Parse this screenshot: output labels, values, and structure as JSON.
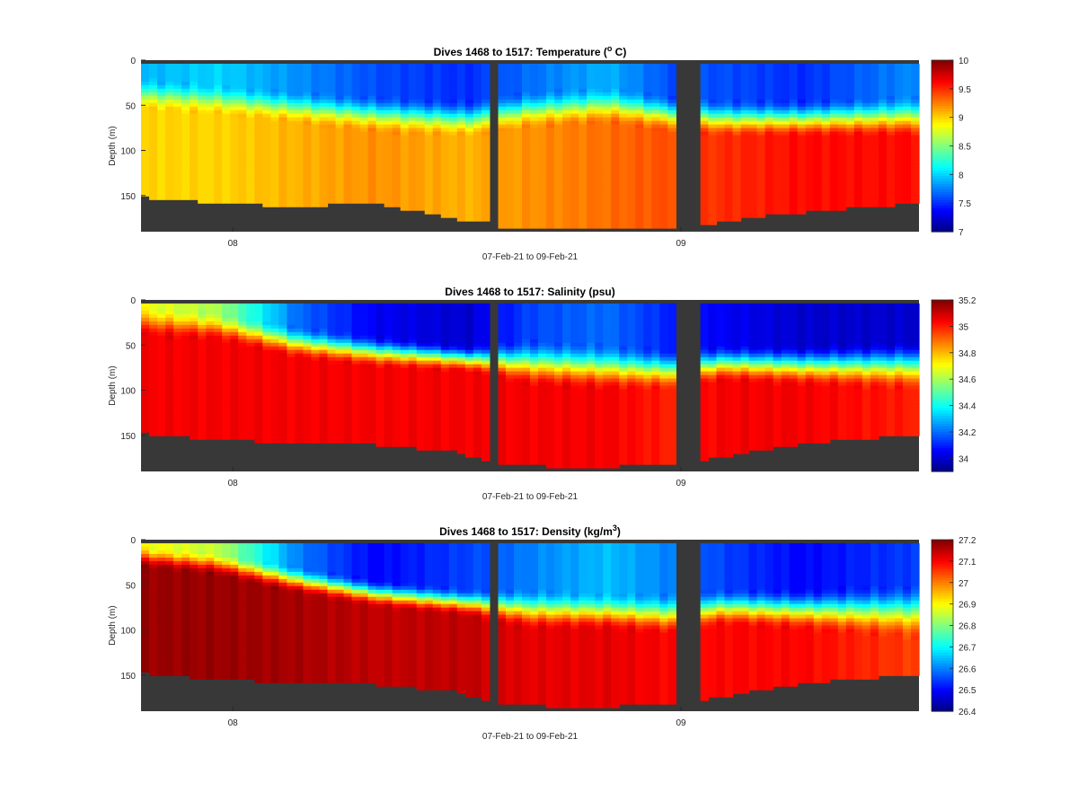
{
  "figure": {
    "background": "#ffffff",
    "no_data_color": "#383838",
    "colormap": "jet"
  },
  "chart_data": [
    {
      "type": "heatmap",
      "variable": "temperature",
      "title_text": "Dives 1468 to 1517: Temperature (",
      "title_sup": "o",
      "title_suffix": " C)",
      "xlabel": "07-Feb-21 to 09-Feb-21",
      "ylabel": "Depth (m)",
      "xlim": [
        0,
        1
      ],
      "x_ticks": [
        {
          "pos": 0.118,
          "label": "08"
        },
        {
          "pos": 0.694,
          "label": "09"
        }
      ],
      "ylim": [
        0,
        190
      ],
      "y_ticks": [
        0,
        50,
        100,
        150
      ],
      "y_tick_labels": [
        "0",
        "50",
        "100",
        "150"
      ],
      "colorbar": {
        "min": 7,
        "max": 10,
        "ticks": [
          "7",
          "7.5",
          "8",
          "8.5",
          "9",
          "9.5",
          "10"
        ]
      },
      "gaps": [
        [
          0.451,
          0.459
        ],
        [
          0.692,
          0.719
        ]
      ],
      "bottom_depth": [
        [
          0.0,
          152
        ],
        [
          0.1,
          158
        ],
        [
          0.2,
          162
        ],
        [
          0.3,
          158
        ],
        [
          0.4,
          175
        ],
        [
          0.45,
          180
        ],
        [
          0.46,
          188
        ],
        [
          0.69,
          188
        ],
        [
          0.72,
          182
        ],
        [
          0.8,
          172
        ],
        [
          0.9,
          165
        ],
        [
          1.0,
          158
        ]
      ],
      "profile": [
        {
          "x": 0.0,
          "surface": 7.9,
          "mld": 20,
          "thermo": 55,
          "deep": 9.0
        },
        {
          "x": 0.1,
          "surface": 8.0,
          "mld": 28,
          "thermo": 60,
          "deep": 9.0
        },
        {
          "x": 0.2,
          "surface": 7.8,
          "mld": 35,
          "thermo": 70,
          "deep": 9.1
        },
        {
          "x": 0.3,
          "surface": 7.6,
          "mld": 40,
          "thermo": 80,
          "deep": 9.2
        },
        {
          "x": 0.42,
          "surface": 7.5,
          "mld": 45,
          "thermo": 85,
          "deep": 9.1
        },
        {
          "x": 0.5,
          "surface": 7.7,
          "mld": 35,
          "thermo": 75,
          "deep": 9.2
        },
        {
          "x": 0.6,
          "surface": 7.9,
          "mld": 30,
          "thermo": 70,
          "deep": 9.3
        },
        {
          "x": 0.68,
          "surface": 7.6,
          "mld": 40,
          "thermo": 80,
          "deep": 9.4
        },
        {
          "x": 0.75,
          "surface": 7.6,
          "mld": 45,
          "thermo": 85,
          "deep": 9.5
        },
        {
          "x": 0.85,
          "surface": 7.5,
          "mld": 45,
          "thermo": 85,
          "deep": 9.6
        },
        {
          "x": 1.0,
          "surface": 7.8,
          "mld": 40,
          "thermo": 85,
          "deep": 9.6
        }
      ]
    },
    {
      "type": "heatmap",
      "variable": "salinity",
      "title_text": "Dives 1468 to 1517: Salinity (psu)",
      "title_sup": "",
      "title_suffix": "",
      "xlabel": "07-Feb-21 to 09-Feb-21",
      "ylabel": "Depth (m)",
      "xlim": [
        0,
        1
      ],
      "x_ticks": [
        {
          "pos": 0.118,
          "label": "08"
        },
        {
          "pos": 0.694,
          "label": "09"
        }
      ],
      "ylim": [
        0,
        190
      ],
      "y_ticks": [
        0,
        50,
        100,
        150
      ],
      "y_tick_labels": [
        "0",
        "50",
        "100",
        "150"
      ],
      "colorbar": {
        "min": 33.9,
        "max": 35.2,
        "ticks": [
          "34",
          "34.2",
          "34.4",
          "34.6",
          "34.8",
          "35",
          "35.2"
        ],
        "tick_values": [
          34,
          34.2,
          34.4,
          34.6,
          34.8,
          35,
          35.2
        ]
      },
      "gaps": [
        [
          0.451,
          0.459
        ],
        [
          0.692,
          0.719
        ]
      ],
      "bottom_depth": [
        [
          0.0,
          148
        ],
        [
          0.1,
          155
        ],
        [
          0.2,
          158
        ],
        [
          0.3,
          160
        ],
        [
          0.4,
          168
        ],
        [
          0.45,
          178
        ],
        [
          0.46,
          182
        ],
        [
          0.55,
          185
        ],
        [
          0.69,
          183
        ],
        [
          0.72,
          178
        ],
        [
          0.8,
          165
        ],
        [
          0.9,
          155
        ],
        [
          1.0,
          150
        ]
      ],
      "profile": [
        {
          "x": 0.0,
          "surface": 34.7,
          "mld": 8,
          "thermo": 40,
          "deep": 35.05
        },
        {
          "x": 0.1,
          "surface": 34.6,
          "mld": 15,
          "thermo": 45,
          "deep": 35.05
        },
        {
          "x": 0.2,
          "surface": 34.2,
          "mld": 30,
          "thermo": 65,
          "deep": 35.05
        },
        {
          "x": 0.3,
          "surface": 34.05,
          "mld": 40,
          "thermo": 75,
          "deep": 35.05
        },
        {
          "x": 0.42,
          "surface": 34.0,
          "mld": 50,
          "thermo": 80,
          "deep": 35.05
        },
        {
          "x": 0.5,
          "surface": 34.15,
          "mld": 45,
          "thermo": 95,
          "deep": 35.05
        },
        {
          "x": 0.6,
          "surface": 34.2,
          "mld": 50,
          "thermo": 100,
          "deep": 35.05
        },
        {
          "x": 0.68,
          "surface": 34.1,
          "mld": 55,
          "thermo": 100,
          "deep": 35.0
        },
        {
          "x": 0.75,
          "surface": 34.05,
          "mld": 50,
          "thermo": 90,
          "deep": 35.05
        },
        {
          "x": 0.85,
          "surface": 34.0,
          "mld": 50,
          "thermo": 95,
          "deep": 35.05
        },
        {
          "x": 1.0,
          "surface": 34.0,
          "mld": 45,
          "thermo": 100,
          "deep": 35.0
        }
      ]
    },
    {
      "type": "heatmap",
      "variable": "density",
      "title_text": "Dives 1468 to 1517: Density (kg/m",
      "title_sup": "3",
      "title_suffix": ")",
      "xlabel": "07-Feb-21 to 09-Feb-21",
      "ylabel": "Depth (m)",
      "xlim": [
        0,
        1
      ],
      "x_ticks": [
        {
          "pos": 0.118,
          "label": "08"
        },
        {
          "pos": 0.694,
          "label": "09"
        }
      ],
      "ylim": [
        0,
        190
      ],
      "y_ticks": [
        0,
        50,
        100,
        150
      ],
      "y_tick_labels": [
        "0",
        "50",
        "100",
        "150"
      ],
      "colorbar": {
        "min": 26.4,
        "max": 27.2,
        "ticks": [
          "26.4",
          "26.5",
          "26.6",
          "26.7",
          "26.8",
          "26.9",
          "27",
          "27.1",
          "27.2"
        ]
      },
      "gaps": [
        [
          0.451,
          0.459
        ],
        [
          0.692,
          0.719
        ]
      ],
      "bottom_depth": [
        [
          0.0,
          148
        ],
        [
          0.1,
          155
        ],
        [
          0.2,
          158
        ],
        [
          0.3,
          160
        ],
        [
          0.4,
          168
        ],
        [
          0.45,
          178
        ],
        [
          0.46,
          182
        ],
        [
          0.55,
          185
        ],
        [
          0.69,
          183
        ],
        [
          0.72,
          178
        ],
        [
          0.8,
          165
        ],
        [
          0.9,
          155
        ],
        [
          1.0,
          150
        ]
      ],
      "profile": [
        {
          "x": 0.0,
          "surface": 26.9,
          "mld": 8,
          "thermo": 30,
          "deep": 27.18
        },
        {
          "x": 0.1,
          "surface": 26.85,
          "mld": 15,
          "thermo": 40,
          "deep": 27.18
        },
        {
          "x": 0.2,
          "surface": 26.6,
          "mld": 30,
          "thermo": 60,
          "deep": 27.17
        },
        {
          "x": 0.3,
          "surface": 26.5,
          "mld": 45,
          "thermo": 75,
          "deep": 27.15
        },
        {
          "x": 0.42,
          "surface": 26.55,
          "mld": 55,
          "thermo": 85,
          "deep": 27.15
        },
        {
          "x": 0.5,
          "surface": 26.6,
          "mld": 55,
          "thermo": 100,
          "deep": 27.12
        },
        {
          "x": 0.6,
          "surface": 26.65,
          "mld": 60,
          "thermo": 100,
          "deep": 27.12
        },
        {
          "x": 0.68,
          "surface": 26.6,
          "mld": 60,
          "thermo": 105,
          "deep": 27.1
        },
        {
          "x": 0.75,
          "surface": 26.55,
          "mld": 55,
          "thermo": 95,
          "deep": 27.1
        },
        {
          "x": 0.85,
          "surface": 26.5,
          "mld": 55,
          "thermo": 100,
          "deep": 27.1
        },
        {
          "x": 1.0,
          "surface": 26.55,
          "mld": 50,
          "thermo": 110,
          "deep": 27.05
        }
      ]
    }
  ]
}
